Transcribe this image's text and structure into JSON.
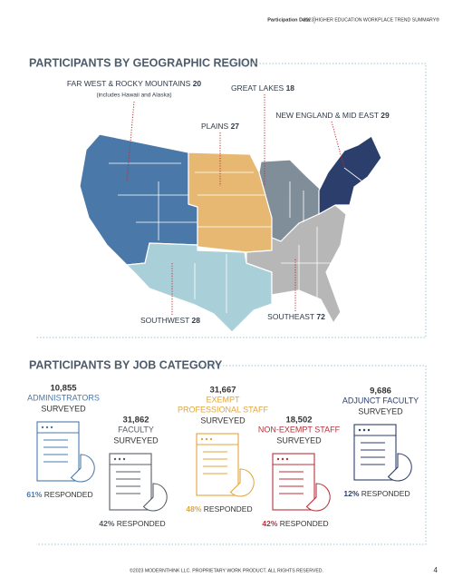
{
  "header": {
    "section": "Participation Data",
    "document": "2023 HIGHER EDUCATION WORKPLACE TREND SUMMARY®"
  },
  "regions": {
    "title": "PARTICIPANTS BY GEOGRAPHIC REGION",
    "items": [
      {
        "name": "FAR WEST & ROCKY MOUNTAINS",
        "count": "20",
        "note": "(includes Hawaii and Alaska)"
      },
      {
        "name": "GREAT LAKES",
        "count": "18"
      },
      {
        "name": "PLAINS",
        "count": "27"
      },
      {
        "name": "NEW ENGLAND & MID EAST",
        "count": "29"
      },
      {
        "name": "SOUTHWEST",
        "count": "28"
      },
      {
        "name": "SOUTHEAST",
        "count": "72"
      }
    ]
  },
  "jobs": {
    "title": "PARTICIPANTS BY JOB CATEGORY",
    "items": [
      {
        "count": "10,855",
        "category": [
          "ADMINISTRATORS"
        ],
        "surveyed": "SURVEYED",
        "responded_pct": "61%",
        "responded": "RESPONDED",
        "color": "#4a78a8"
      },
      {
        "count": "31,862",
        "category": [
          "FACULTY"
        ],
        "surveyed": "SURVEYED",
        "responded_pct": "42%",
        "responded": "RESPONDED",
        "color": "#555c63"
      },
      {
        "count": "31,667",
        "category": [
          "EXEMPT",
          "PROFESSIONAL STAFF"
        ],
        "surveyed": "SURVEYED",
        "responded_pct": "48%",
        "responded": "RESPONDED",
        "color": "#e0a63c"
      },
      {
        "count": "18,502",
        "category": [
          "NON-EXEMPT STAFF"
        ],
        "surveyed": "SURVEYED",
        "responded_pct": "42%",
        "responded": "RESPONDED",
        "color": "#b8323a"
      },
      {
        "count": "9,686",
        "category": [
          "ADJUNCT FACULTY"
        ],
        "surveyed": "SURVEYED",
        "responded_pct": "12%",
        "responded": "RESPONDED",
        "color": "#2c3e6b"
      }
    ]
  },
  "footer": {
    "copyright": "©2023 MODERNTHINK LLC. PROPRIETARY WORK PRODUCT. ALL RIGHTS RESERVED.",
    "page": "4"
  }
}
